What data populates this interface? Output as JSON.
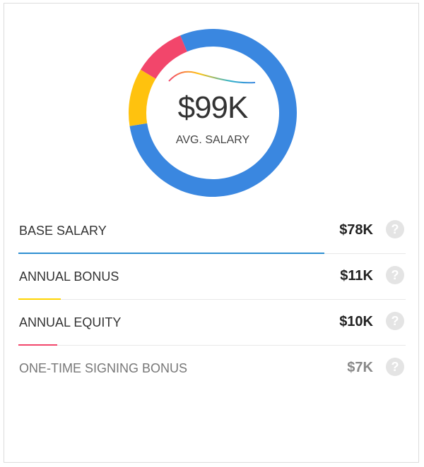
{
  "summary": {
    "value": "$99K",
    "label": "AVG. SALARY"
  },
  "chart_data": {
    "type": "pie",
    "total_label": "$99K",
    "categories": [
      "BASE SALARY",
      "ANNUAL BONUS",
      "ANNUAL EQUITY"
    ],
    "values": [
      78,
      11,
      10
    ],
    "colors": [
      "#3a87e0",
      "#ffc20e",
      "#f2466b"
    ]
  },
  "rows": [
    {
      "label": "BASE SALARY",
      "value": "$78K",
      "color": "#2e8fd1",
      "fraction": 0.79,
      "help_icon": "question-circle-icon"
    },
    {
      "label": "ANNUAL BONUS",
      "value": "$11K",
      "color": "#ffd400",
      "fraction": 0.11,
      "help_icon": "question-circle-icon"
    },
    {
      "label": "ANNUAL EQUITY",
      "value": "$10K",
      "color": "#f2466b",
      "fraction": 0.1,
      "help_icon": "question-circle-icon"
    },
    {
      "label": "ONE-TIME SIGNING BONUS",
      "value": "$7K",
      "color": "",
      "fraction": 0,
      "help_icon": "question-circle-icon"
    }
  ],
  "help_glyph": "?"
}
